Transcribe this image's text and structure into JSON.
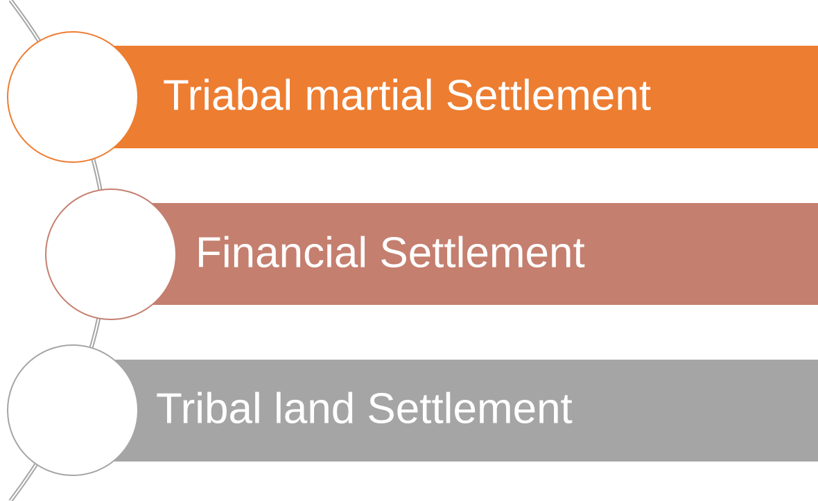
{
  "items": [
    {
      "label": "Triabal martial Settlement"
    },
    {
      "label": "Financial Settlement"
    },
    {
      "label": "Tribal land Settlement"
    }
  ]
}
